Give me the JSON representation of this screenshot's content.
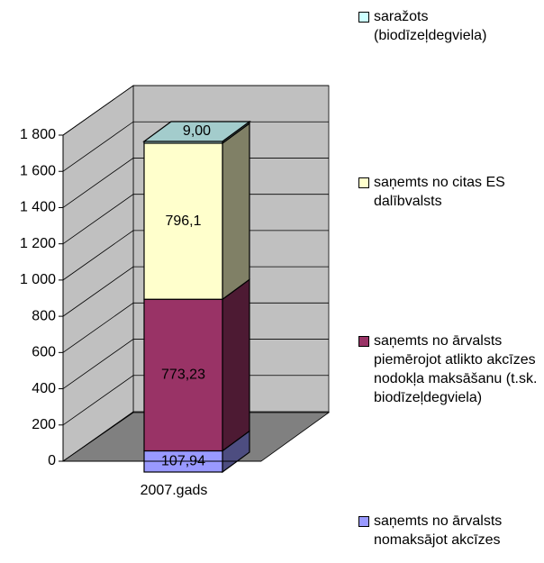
{
  "chart_data": {
    "type": "bar3d_stacked",
    "categories": [
      "2007.gads"
    ],
    "series": [
      {
        "name": "saņemts no ārvalsts nomaksājot akcīzes",
        "color": "#9999ff",
        "values": [
          107.94
        ],
        "value_labels": [
          "107,94"
        ]
      },
      {
        "name": "saņemts no ārvalsts piemērojot atlikto akcīzes nodokļa maksāšanu (t.sk. biodīzeļdegviela)",
        "color": "#993366",
        "values": [
          773.23
        ],
        "value_labels": [
          "773,23"
        ]
      },
      {
        "name": "saņemts no citas ES dalībvalsts",
        "color": "#ffffcc",
        "values": [
          796.1
        ],
        "value_labels": [
          "796,1"
        ]
      },
      {
        "name": "saražots (biodīzeļdegviela)",
        "color": "#ccffff",
        "values": [
          9.0
        ],
        "value_labels": [
          "9,00"
        ]
      }
    ],
    "ylim": [
      0,
      1800
    ],
    "yticks": [
      0,
      200,
      400,
      600,
      800,
      {
        "value": 1000,
        "label": "1 000"
      },
      {
        "value": 1200,
        "label": "1 200"
      },
      {
        "value": 1400,
        "label": "1 400"
      },
      {
        "value": 1600,
        "label": "1 600"
      },
      {
        "value": 1800,
        "label": "1 800"
      }
    ],
    "grid": true
  }
}
